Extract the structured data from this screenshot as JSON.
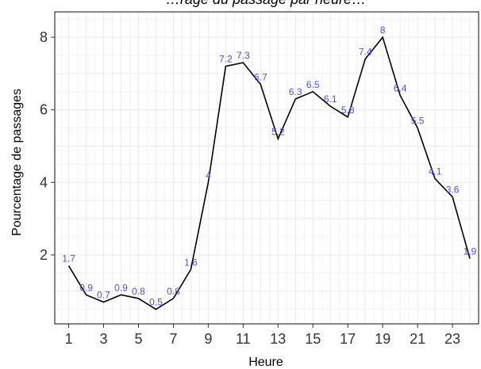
{
  "chart_data": {
    "type": "line",
    "title": "…rage du passage par heure…",
    "xlabel": "Heure",
    "ylabel": "Pourcentage de passages",
    "x": [
      1,
      2,
      3,
      4,
      5,
      6,
      7,
      8,
      9,
      10,
      11,
      12,
      13,
      14,
      15,
      16,
      17,
      18,
      19,
      20,
      21,
      22,
      23,
      24
    ],
    "values": [
      1.7,
      0.9,
      0.7,
      0.9,
      0.8,
      0.5,
      0.8,
      1.6,
      4,
      7.2,
      7.3,
      6.7,
      5.2,
      6.3,
      6.5,
      6.1,
      5.8,
      7.4,
      8,
      6.4,
      5.5,
      4.1,
      3.6,
      1.9
    ],
    "data_labels": [
      "1.7",
      "0.9",
      "0.7",
      "0.9",
      "0.8",
      "0.5",
      "0.8",
      "1.6",
      "4",
      "7.2",
      "7.3",
      "6.7",
      "5.2",
      "6.3",
      "6.5",
      "6.1",
      "5.8",
      "7.4",
      "8",
      "6.4",
      "5.5",
      "4.1",
      "3.6",
      "1.9"
    ],
    "x_ticks": [
      "1",
      "3",
      "5",
      "7",
      "9",
      "11",
      "13",
      "15",
      "17",
      "19",
      "21",
      "23"
    ],
    "y_ticks": [
      "2",
      "4",
      "6",
      "8"
    ],
    "xlim": [
      0.2,
      24.5
    ],
    "ylim": [
      0.1,
      8.7
    ],
    "grid": true,
    "colors": {
      "line": "#000000",
      "labels": "#4b4bff",
      "grid": "#ebebeb",
      "panel_border": "#333333"
    }
  }
}
